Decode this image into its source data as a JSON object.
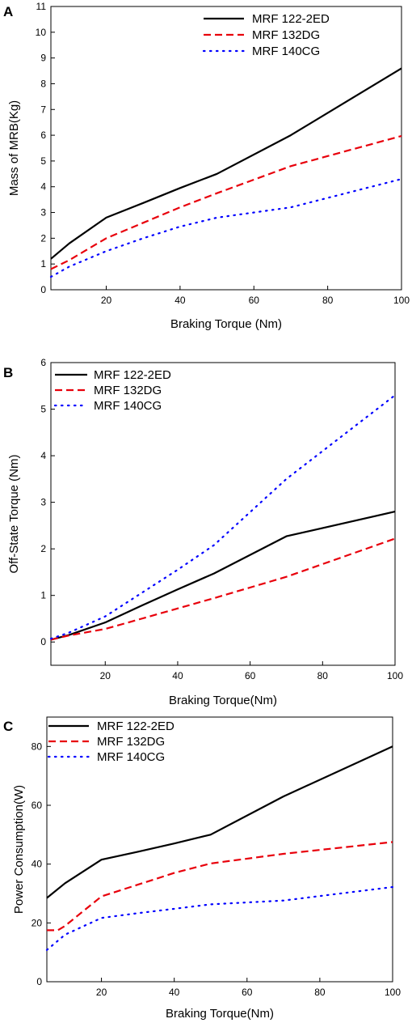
{
  "chart_data": [
    {
      "type": "line",
      "panel": "A",
      "xlabel": "Braking Torque (Nm)",
      "ylabel": "Mass of MRB(Kg)",
      "xlim": [
        5,
        100
      ],
      "ylim": [
        0,
        11
      ],
      "xticks": [
        20,
        40,
        60,
        80,
        100
      ],
      "yticks": [
        0,
        1,
        2,
        3,
        4,
        5,
        6,
        7,
        8,
        9,
        10,
        11
      ],
      "legend_position": "top-right",
      "series": [
        {
          "name": "MRF 122-2ED",
          "color": "#000000",
          "style": "solid",
          "x": [
            5,
            10,
            20,
            30,
            40,
            50,
            70,
            100
          ],
          "y": [
            1.2,
            1.8,
            2.8,
            3.37,
            3.95,
            4.5,
            6.0,
            8.6
          ]
        },
        {
          "name": "MRF 132DG",
          "color": "#e8000b",
          "style": "dashed",
          "x": [
            5,
            10,
            20,
            30,
            40,
            50,
            70,
            100
          ],
          "y": [
            0.8,
            1.15,
            2.0,
            2.6,
            3.2,
            3.75,
            4.8,
            5.97
          ]
        },
        {
          "name": "MRF 140CG",
          "color": "#0000ff",
          "style": "dotted",
          "x": [
            5,
            10,
            20,
            30,
            40,
            50,
            70,
            100
          ],
          "y": [
            0.5,
            0.9,
            1.5,
            2.0,
            2.45,
            2.8,
            3.2,
            4.3
          ]
        }
      ]
    },
    {
      "type": "line",
      "panel": "B",
      "xlabel": "Braking Torque(Nm)",
      "ylabel": "Off-State Torque (Nm)",
      "xlim": [
        5,
        100
      ],
      "ylim": [
        -0.5,
        6
      ],
      "xticks": [
        20,
        40,
        60,
        80,
        100
      ],
      "yticks": [
        0,
        1,
        2,
        3,
        4,
        5,
        6
      ],
      "legend_position": "top-left",
      "series": [
        {
          "name": "MRF 122-2ED",
          "color": "#000000",
          "style": "solid",
          "x": [
            5,
            10,
            20,
            30,
            40,
            50,
            70,
            100
          ],
          "y": [
            0.05,
            0.15,
            0.42,
            0.78,
            1.13,
            1.47,
            2.27,
            2.8
          ]
        },
        {
          "name": "MRF 132DG",
          "color": "#e8000b",
          "style": "dashed",
          "x": [
            5,
            10,
            20,
            30,
            40,
            50,
            70,
            100
          ],
          "y": [
            0.05,
            0.14,
            0.28,
            0.5,
            0.72,
            0.94,
            1.4,
            2.22
          ]
        },
        {
          "name": "MRF 140CG",
          "color": "#0000ff",
          "style": "dotted",
          "x": [
            5,
            10,
            20,
            30,
            40,
            50,
            70,
            100
          ],
          "y": [
            0.07,
            0.2,
            0.55,
            1.05,
            1.55,
            2.08,
            3.5,
            5.3
          ]
        }
      ]
    },
    {
      "type": "line",
      "panel": "C",
      "xlabel": "Braking Torque(Nm)",
      "ylabel": "Power Consumption(W)",
      "xlim": [
        5,
        100
      ],
      "ylim": [
        0,
        90
      ],
      "xticks": [
        20,
        40,
        60,
        80,
        100
      ],
      "yticks": [
        0,
        20,
        40,
        60,
        80
      ],
      "legend_position": "top-left",
      "series": [
        {
          "name": "MRF 122-2ED",
          "color": "#000000",
          "style": "solid",
          "x": [
            5,
            10,
            20,
            30,
            40,
            50,
            70,
            100
          ],
          "y": [
            28.5,
            33.5,
            41.5,
            44.2,
            47,
            50,
            63,
            80
          ]
        },
        {
          "name": "MRF 132DG",
          "color": "#e8000b",
          "style": "dashed",
          "x": [
            5,
            8,
            10,
            20,
            30,
            40,
            50,
            70,
            100
          ],
          "y": [
            17.5,
            17.5,
            19,
            29,
            33,
            37,
            40.2,
            43.5,
            47.5
          ]
        },
        {
          "name": "MRF 140CG",
          "color": "#0000ff",
          "style": "dotted",
          "x": [
            5,
            10,
            20,
            30,
            40,
            50,
            70,
            100
          ],
          "y": [
            10.8,
            16,
            21.7,
            23.3,
            24.8,
            26.3,
            27.6,
            32.2
          ]
        }
      ]
    }
  ]
}
